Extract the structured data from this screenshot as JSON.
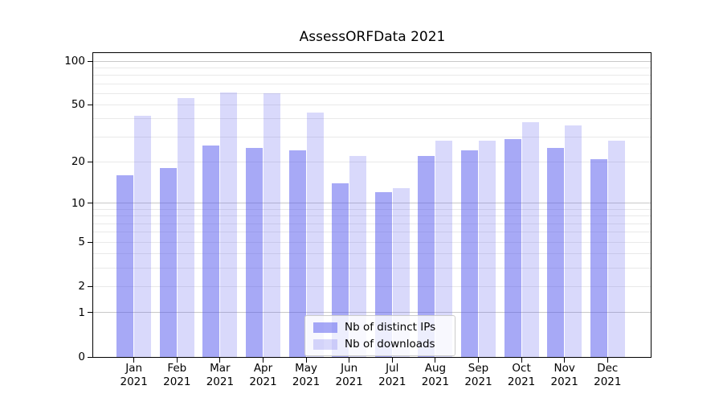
{
  "chart_data": {
    "type": "bar",
    "title": "AssessORFData 2021",
    "categories": [
      "Jan",
      "Feb",
      "Mar",
      "Apr",
      "May",
      "Jun",
      "Jul",
      "Aug",
      "Sep",
      "Oct",
      "Nov",
      "Dec"
    ],
    "x_year_label": "2021",
    "series": [
      {
        "name": "Nb of distinct IPs",
        "color_rgba": "rgba(80,83,238,0.5)",
        "color_hex_on_white": "#a7a9f6",
        "values": [
          16,
          18,
          26,
          25,
          24,
          14,
          12,
          22,
          24,
          29,
          25,
          21
        ]
      },
      {
        "name": "Nb of downloads",
        "color_rgba": "rgba(80,83,238,0.22)",
        "color_hex_on_white": "#d8d9fa",
        "values": [
          42,
          56,
          61,
          60,
          44,
          22,
          13,
          28,
          28,
          38,
          36,
          28
        ]
      }
    ],
    "yscale": "log1p",
    "ylabel": "",
    "xlabel": "",
    "y_tick_labels": [
      "100",
      "50",
      "20",
      "10",
      "5",
      "2",
      "1",
      "0"
    ],
    "y_ticks": [
      100,
      50,
      20,
      10,
      5,
      2,
      1,
      0
    ],
    "y_decade_gridlines": [
      1,
      10,
      100
    ],
    "y_minor_gridlines": [
      2,
      3,
      4,
      5,
      6,
      7,
      8,
      9,
      20,
      30,
      40,
      50,
      60,
      70,
      80,
      90
    ],
    "ylim": [
      0,
      115
    ],
    "grid": "horizontal",
    "legend_position": "lower center",
    "frame_color": "#000000",
    "major_grid_color": "#c9c9c9",
    "minor_grid_color": "#e9e9e9"
  }
}
